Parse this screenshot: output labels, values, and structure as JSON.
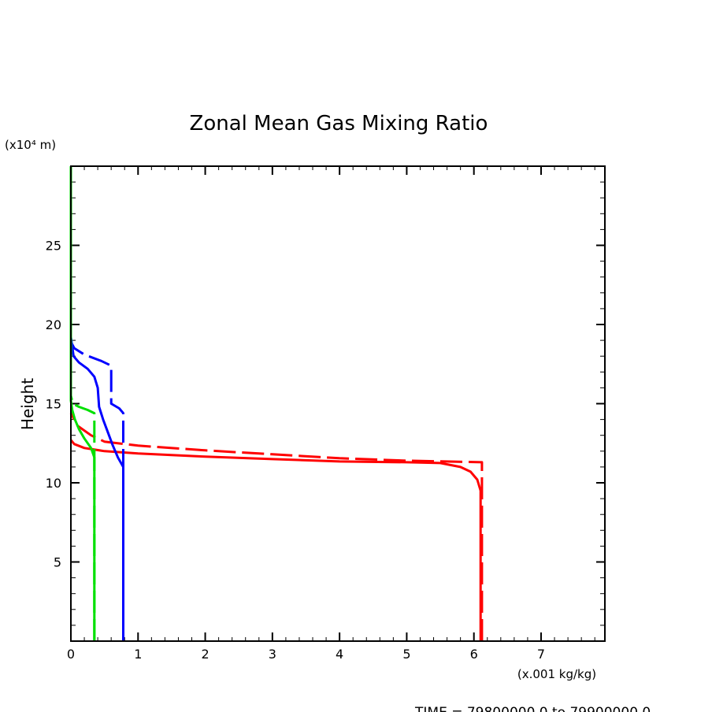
{
  "chart_data": {
    "type": "line",
    "title": "Zonal Mean Gas Mixing Ratio",
    "xlabel": "(x.001 kg/kg)",
    "ylabel": "Height",
    "yunit": "(x10⁴ m)",
    "footer": "TIME = 79800000.0 to 79900000.0",
    "xlim": [
      0,
      7.95
    ],
    "ylim": [
      0,
      30
    ],
    "xticks": [
      0,
      1,
      2,
      3,
      4,
      5,
      6,
      7
    ],
    "yticks": [
      5,
      10,
      15,
      20,
      25
    ],
    "grid": false,
    "series": [
      {
        "name": "red-solid",
        "color": "#ff0000",
        "dash": false,
        "points": [
          [
            6.1,
            0
          ],
          [
            6.1,
            9.5
          ],
          [
            6.05,
            10.2
          ],
          [
            5.95,
            10.7
          ],
          [
            5.8,
            11
          ],
          [
            5.5,
            11.25
          ],
          [
            5,
            11.3
          ],
          [
            4,
            11.35
          ],
          [
            3,
            11.5
          ],
          [
            2,
            11.65
          ],
          [
            1,
            11.85
          ],
          [
            0.5,
            12
          ],
          [
            0.2,
            12.2
          ],
          [
            0.05,
            12.45
          ],
          [
            0,
            12.7
          ]
        ]
      },
      {
        "name": "red-dashed",
        "color": "#ff0000",
        "dash": true,
        "points": [
          [
            6.12,
            0
          ],
          [
            6.12,
            11.3
          ],
          [
            5,
            11.4
          ],
          [
            4,
            11.55
          ],
          [
            3,
            11.8
          ],
          [
            2,
            12.05
          ],
          [
            1,
            12.35
          ],
          [
            0.5,
            12.6
          ],
          [
            0.3,
            13
          ],
          [
            0.1,
            13.6
          ],
          [
            0,
            14.4
          ]
        ]
      },
      {
        "name": "blue-solid",
        "color": "#0000ff",
        "dash": false,
        "points": [
          [
            0.78,
            0
          ],
          [
            0.78,
            11
          ],
          [
            0.7,
            11.6
          ],
          [
            0.62,
            12.4
          ],
          [
            0.55,
            13.2
          ],
          [
            0.48,
            14
          ],
          [
            0.42,
            14.8
          ],
          [
            0.4,
            16
          ],
          [
            0.35,
            16.7
          ],
          [
            0.25,
            17.2
          ],
          [
            0.12,
            17.6
          ],
          [
            0.04,
            18
          ],
          [
            0,
            19.2
          ]
        ]
      },
      {
        "name": "blue-dashed",
        "color": "#0000ff",
        "dash": true,
        "points": [
          [
            0.78,
            0
          ],
          [
            0.78,
            14.4
          ],
          [
            0.72,
            14.7
          ],
          [
            0.6,
            15
          ],
          [
            0.6,
            17.4
          ],
          [
            0.45,
            17.7
          ],
          [
            0.2,
            18.1
          ],
          [
            0.05,
            18.5
          ],
          [
            0,
            18.9
          ]
        ]
      },
      {
        "name": "green-solid",
        "color": "#00e000",
        "dash": false,
        "points": [
          [
            0.35,
            0
          ],
          [
            0.35,
            11.6
          ],
          [
            0.3,
            12.2
          ],
          [
            0.2,
            12.8
          ],
          [
            0.12,
            13.4
          ],
          [
            0.06,
            14
          ],
          [
            0.02,
            14.6
          ],
          [
            0,
            15.2
          ],
          [
            0,
            30
          ]
        ]
      },
      {
        "name": "green-dashed",
        "color": "#00e000",
        "dash": true,
        "points": [
          [
            0.35,
            0
          ],
          [
            0.35,
            14.4
          ],
          [
            0.25,
            14.6
          ],
          [
            0.12,
            14.8
          ],
          [
            0.03,
            15
          ],
          [
            0,
            15.5
          ]
        ]
      }
    ]
  }
}
